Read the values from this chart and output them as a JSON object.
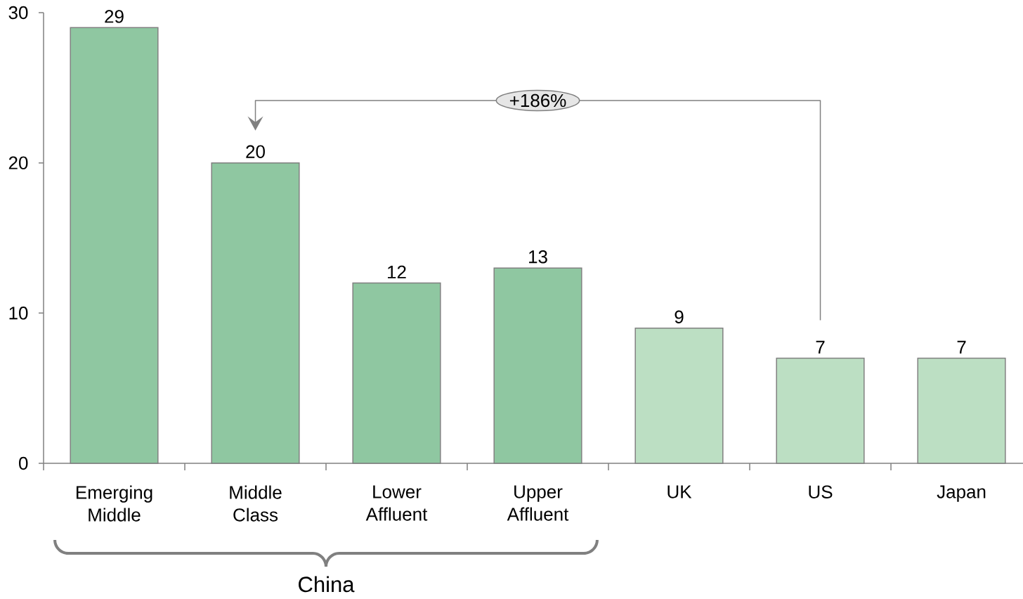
{
  "chart_data": {
    "type": "bar",
    "categories": [
      "Emerging Middle",
      "Middle Class",
      "Lower Affluent",
      "Upper Affluent",
      "UK",
      "US",
      "Japan"
    ],
    "values": [
      29,
      20,
      12,
      13,
      9,
      7,
      7
    ],
    "colors": [
      "#8fc7a1",
      "#8fc7a1",
      "#8fc7a1",
      "#8fc7a1",
      "#bcdfc3",
      "#bcdfc3",
      "#bcdfc3"
    ],
    "ylim": [
      0,
      30
    ],
    "yticks": [
      0,
      10,
      20,
      30
    ],
    "data_labels": true,
    "annotations": [
      "+186%",
      "China"
    ]
  }
}
